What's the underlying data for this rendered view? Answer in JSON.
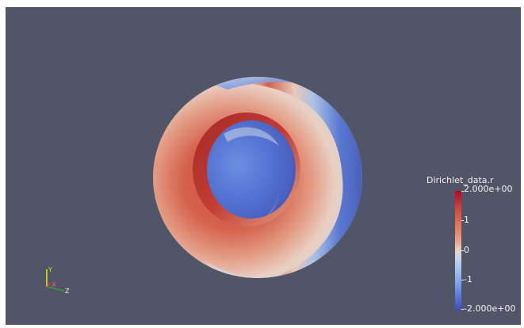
{
  "viewport": {
    "background": "#525568"
  },
  "object": {
    "shape": "torus",
    "colormap": "cool-to-warm",
    "colors": {
      "low": "#3b4cc0",
      "mid": "#dddcdc",
      "high": "#b40426"
    }
  },
  "colorbar": {
    "title": "Dirichlet_data.r",
    "max_label": "2.000e+00",
    "min_label": "-2.000e+00",
    "ticks": [
      "1",
      "0",
      "-1"
    ]
  },
  "axes": {
    "x_label": "X",
    "y_label": "Y",
    "z_label": "Z"
  }
}
